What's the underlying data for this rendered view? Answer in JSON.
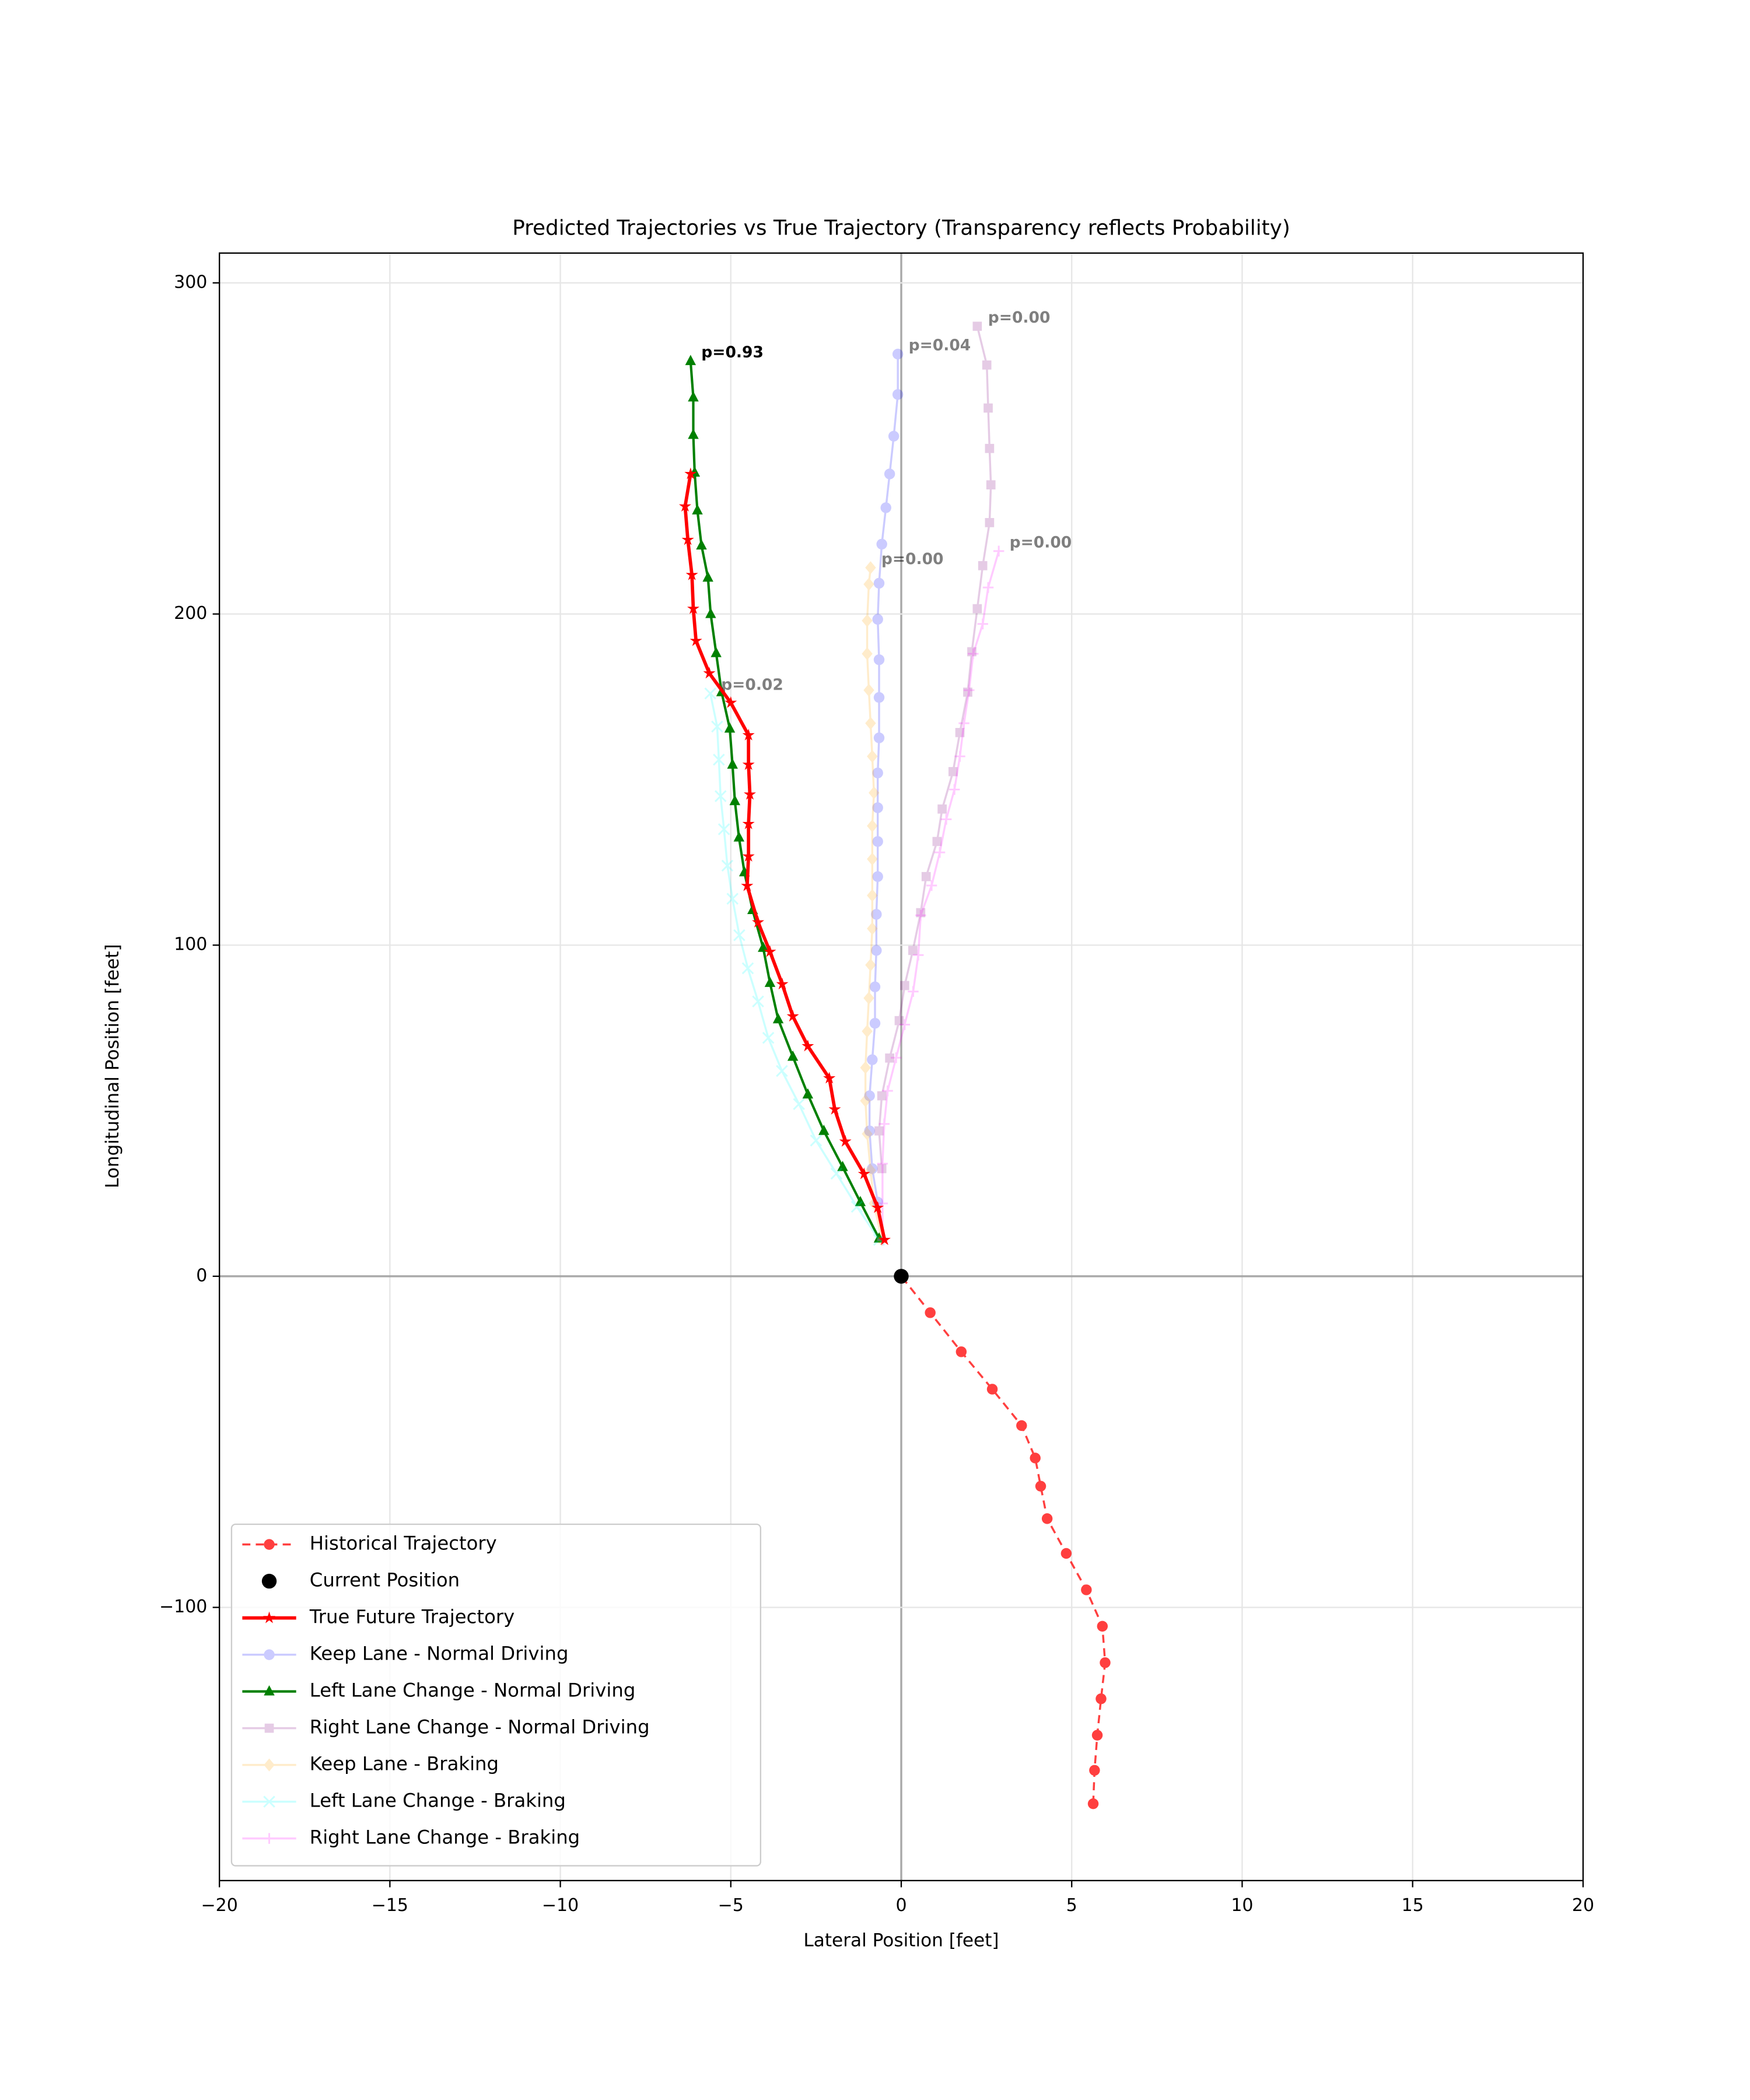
{
  "chart_data": {
    "type": "line",
    "title": "Predicted Trajectories vs True Trajectory (Transparency reflects Probability)",
    "xlabel": "Lateral Position [feet]",
    "ylabel": "Longitudinal Position [feet]",
    "xlim": [
      -20,
      20
    ],
    "ylim": [
      -182.5,
      309
    ],
    "xticks": [
      {
        "value": -20,
        "label": "−20"
      },
      {
        "value": -15,
        "label": "−15"
      },
      {
        "value": -10,
        "label": "−10"
      },
      {
        "value": -5,
        "label": "−5"
      },
      0,
      5,
      10,
      15,
      20
    ],
    "yticks": [
      {
        "value": -100,
        "label": "−100"
      },
      0,
      100,
      200,
      300
    ],
    "grid": true,
    "legend": "lower left",
    "series": [
      {
        "name": "Historical Trajectory",
        "color": "red",
        "alpha": 0.75,
        "marker": "circle",
        "linestyle": "dashed",
        "linewidth": 1.5,
        "x": [
          5.63,
          5.67,
          5.75,
          5.86,
          5.98,
          5.9,
          5.43,
          4.84,
          4.28,
          4.09,
          3.93,
          3.53,
          2.67,
          1.76,
          0.85,
          0
        ],
        "values": [
          -159.3,
          -149.2,
          -138.6,
          -127.6,
          -116.7,
          -105.7,
          -94.7,
          -83.7,
          -73.2,
          -63.4,
          -54.9,
          -45.1,
          -34.1,
          -22.8,
          -11,
          0
        ]
      },
      {
        "name": "Current Position",
        "color": "black",
        "alpha": 1,
        "marker": "circle",
        "linestyle": "none",
        "linewidth": 0,
        "x": [
          0
        ],
        "values": [
          0
        ]
      },
      {
        "name": "True Future Trajectory",
        "color": "red",
        "alpha": 1,
        "marker": "star",
        "linestyle": "solid",
        "linewidth": 2.5,
        "x": [
          -0.49,
          -0.69,
          -1.09,
          -1.64,
          -1.95,
          -2.11,
          -2.74,
          -3.18,
          -3.49,
          -3.85,
          -4.2,
          -4.52,
          -4.48,
          -4.48,
          -4.44,
          -4.48,
          -4.48,
          -5.0,
          -5.63,
          -6.02,
          -6.1,
          -6.14,
          -6.26,
          -6.34,
          -6.18
        ],
        "values": [
          11,
          20.7,
          30.9,
          40.7,
          50.4,
          59.8,
          69.5,
          78.5,
          88.2,
          98,
          106.9,
          117.9,
          126.8,
          136.6,
          145.5,
          154.5,
          163.4,
          173.2,
          182.1,
          191.9,
          201.6,
          211.8,
          222.4,
          232.5,
          242.3
        ]
      },
      {
        "name": "Keep Lane - Normal Driving",
        "color": "blue",
        "alpha": 0.2,
        "marker": "circle",
        "linestyle": "solid",
        "linewidth": 1.5,
        "label": "p=0.04",
        "x": [
          -0.69,
          -0.85,
          -0.93,
          -0.93,
          -0.85,
          -0.77,
          -0.77,
          -0.73,
          -0.73,
          -0.69,
          -0.69,
          -0.69,
          -0.69,
          -0.65,
          -0.65,
          -0.65,
          -0.69,
          -0.65,
          -0.57,
          -0.45,
          -0.34,
          -0.22,
          -0.1,
          -0.1
        ],
        "values": [
          22.4,
          32.5,
          43.9,
          54.5,
          65.4,
          76.4,
          87.4,
          98.4,
          109.3,
          120.7,
          131.3,
          141.5,
          152,
          162.6,
          174.8,
          186.2,
          198.4,
          209.3,
          221.1,
          232.1,
          242.3,
          253.7,
          266.3,
          278.5
        ]
      },
      {
        "name": "Left Lane Change - Normal Driving",
        "color": "green",
        "alpha": 1,
        "marker": "triangle",
        "linestyle": "solid",
        "linewidth": 1.8,
        "label": "p=0.93",
        "x": [
          -0.65,
          -1.2,
          -1.72,
          -2.27,
          -2.74,
          -3.18,
          -3.61,
          -3.85,
          -4.05,
          -4.36,
          -4.6,
          -4.76,
          -4.88,
          -4.95,
          -5.03,
          -5.27,
          -5.43,
          -5.59,
          -5.67,
          -5.86,
          -5.98,
          -6.06,
          -6.1,
          -6.1,
          -6.18
        ],
        "values": [
          11.4,
          22.4,
          33,
          43.9,
          54.9,
          66.3,
          77.6,
          88.6,
          99.2,
          110.6,
          122,
          132.5,
          143.5,
          154.5,
          165.4,
          176.4,
          188.2,
          200,
          211,
          220.7,
          231.3,
          242.7,
          254.1,
          265.4,
          276.4
        ]
      },
      {
        "name": "Right Lane Change - Normal Driving",
        "color": "purple",
        "alpha": 0.2,
        "marker": "square",
        "linestyle": "solid",
        "linewidth": 1.5,
        "label": "p=0.00",
        "x": [
          -0.57,
          -0.65,
          -0.57,
          -0.34,
          -0.06,
          0.1,
          0.34,
          0.57,
          0.73,
          1.05,
          1.2,
          1.52,
          1.72,
          1.95,
          2.07,
          2.23,
          2.39,
          2.59,
          2.63,
          2.59,
          2.55,
          2.51,
          2.23
        ],
        "values": [
          32.5,
          43.9,
          54.5,
          65.9,
          77.2,
          87.8,
          98.4,
          109.8,
          120.7,
          131.3,
          141.1,
          152.4,
          164.2,
          176.4,
          188.6,
          201.6,
          214.6,
          227.6,
          239,
          250,
          262.2,
          275.2,
          286.9
        ]
      },
      {
        "name": "Keep Lane - Braking",
        "color": "orange",
        "alpha": 0.2,
        "marker": "diamond",
        "linestyle": "solid",
        "linewidth": 1.5,
        "label": "p=0.00",
        "x": [
          -0.57,
          -0.8,
          -0.9,
          -1.0,
          -1.05,
          -1.05,
          -1.0,
          -0.95,
          -0.9,
          -0.85,
          -0.85,
          -0.85,
          -0.85,
          -0.8,
          -0.85,
          -0.9,
          -0.95,
          -1.0,
          -1.0,
          -0.95,
          -0.9
        ],
        "values": [
          11,
          22,
          32,
          43,
          53,
          63,
          74,
          84,
          94,
          105,
          115,
          126,
          136,
          146,
          157,
          167,
          177,
          188,
          198,
          209,
          214
        ]
      },
      {
        "name": "Left Lane Change - Braking",
        "color": "cyan",
        "alpha": 0.2,
        "marker": "x",
        "linestyle": "solid",
        "linewidth": 1.5,
        "label": "p=0.02",
        "x": [
          -0.65,
          -1.3,
          -1.9,
          -2.5,
          -3.0,
          -3.5,
          -3.9,
          -4.2,
          -4.5,
          -4.75,
          -4.95,
          -5.1,
          -5.2,
          -5.3,
          -5.35,
          -5.4,
          -5.6
        ],
        "values": [
          11,
          21,
          31,
          41,
          52,
          62,
          72,
          83,
          93,
          103,
          114,
          124,
          135,
          145,
          156,
          166,
          176
        ]
      },
      {
        "name": "Right Lane Change - Braking",
        "color": "magenta",
        "alpha": 0.2,
        "marker": "plus",
        "linestyle": "solid",
        "linewidth": 1.5,
        "label": "p=0.00",
        "x": [
          -0.55,
          -0.55,
          -0.55,
          -0.5,
          -0.4,
          -0.15,
          0.1,
          0.35,
          0.5,
          0.57,
          0.89,
          1.13,
          1.32,
          1.56,
          1.72,
          1.84,
          1.99,
          2.11,
          2.39,
          2.55,
          2.86
        ],
        "values": [
          11,
          22,
          34,
          46,
          56,
          66,
          76,
          86,
          97,
          109,
          118,
          128,
          138,
          147,
          157,
          167,
          177,
          188,
          197,
          208,
          219
        ]
      }
    ]
  }
}
